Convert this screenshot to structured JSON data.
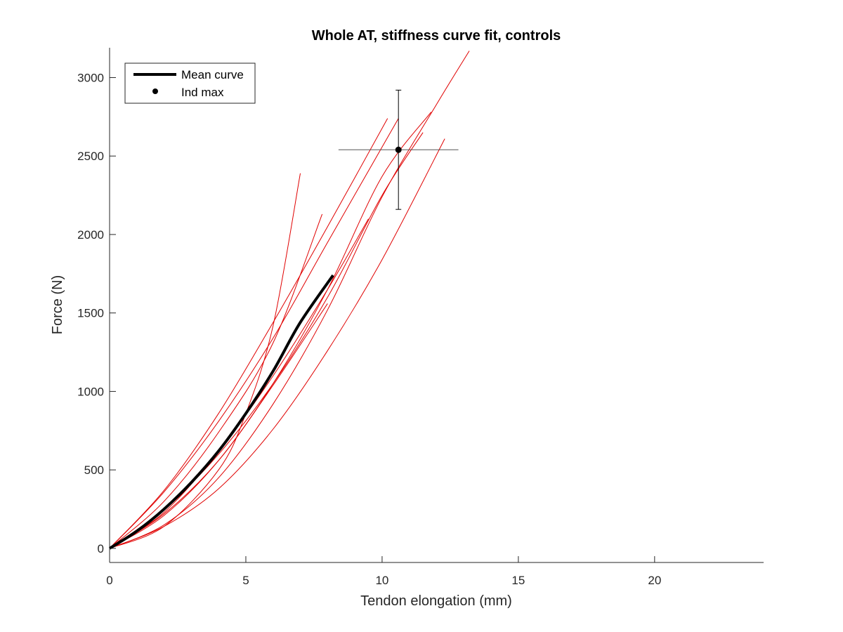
{
  "chart_data": {
    "type": "line",
    "title": "Whole AT, stiffness curve fit, controls",
    "xlabel": "Tendon elongation (mm)",
    "ylabel": "Force (N)",
    "xlim": [
      0,
      24
    ],
    "ylim": [
      -90,
      3190
    ],
    "xticks": [
      0,
      5,
      10,
      15,
      20
    ],
    "yticks": [
      0,
      500,
      1000,
      1500,
      2000,
      2500,
      3000
    ],
    "legend": {
      "placement": "top-left",
      "entries": [
        "Mean curve",
        "Ind max"
      ]
    },
    "colors": {
      "individual": "#e00000",
      "mean": "#000000",
      "error_bar": "#555555",
      "axis": "#262626"
    },
    "mean_curve": {
      "name": "Mean curve",
      "x": [
        0,
        1,
        2,
        3,
        4,
        5,
        6,
        7,
        8.2
      ],
      "y": [
        0,
        110,
        250,
        420,
        620,
        860,
        1130,
        1440,
        1740
      ]
    },
    "individual_max": {
      "name": "Ind max",
      "x": 10.6,
      "y": 2540,
      "x_err": [
        8.4,
        12.8
      ],
      "y_err": [
        2160,
        2920
      ]
    },
    "individual_curves": [
      {
        "x": [
          0,
          2,
          4,
          5,
          6,
          7
        ],
        "y": [
          0,
          140,
          500,
          860,
          1420,
          2390
        ]
      },
      {
        "x": [
          0,
          2,
          4,
          6,
          8,
          10.2
        ],
        "y": [
          0,
          370,
          860,
          1440,
          2050,
          2740
        ]
      },
      {
        "x": [
          0,
          2,
          4,
          6,
          7.8
        ],
        "y": [
          0,
          300,
          740,
          1310,
          2130
        ]
      },
      {
        "x": [
          0,
          2,
          4,
          6,
          8,
          10.6
        ],
        "y": [
          0,
          360,
          810,
          1340,
          1950,
          2740
        ]
      },
      {
        "x": [
          0,
          2,
          4,
          6,
          8,
          10,
          11.8
        ],
        "y": [
          0,
          210,
          560,
          1050,
          1650,
          2370,
          2780
        ]
      },
      {
        "x": [
          0,
          2,
          4,
          6,
          8,
          10,
          12,
          13.2
        ],
        "y": [
          0,
          150,
          450,
          920,
          1520,
          2240,
          2830,
          3170
        ]
      },
      {
        "x": [
          0,
          2,
          4,
          6,
          8,
          10,
          12.3
        ],
        "y": [
          0,
          140,
          380,
          760,
          1260,
          1840,
          2610
        ]
      },
      {
        "x": [
          0,
          2,
          4,
          6,
          8,
          10,
          11.5
        ],
        "y": [
          0,
          250,
          600,
          1050,
          1600,
          2250,
          2650
        ]
      },
      {
        "x": [
          0,
          2,
          4,
          6,
          8,
          9.5
        ],
        "y": [
          0,
          230,
          620,
          1100,
          1650,
          2100
        ]
      },
      {
        "x": [
          0,
          2,
          4,
          6,
          8
        ],
        "y": [
          0,
          220,
          560,
          1040,
          1560
        ]
      }
    ]
  }
}
